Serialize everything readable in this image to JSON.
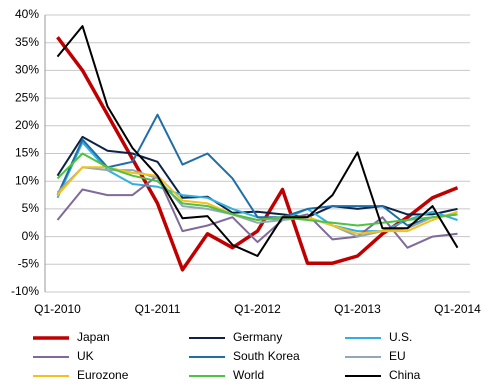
{
  "chart_data": {
    "type": "line",
    "categories": [
      "Q1-2010",
      null,
      null,
      null,
      "Q1-2011",
      null,
      null,
      null,
      "Q1-2012",
      null,
      null,
      null,
      "Q1-2013",
      null,
      null,
      null,
      "Q1-2014"
    ],
    "ylim": [
      -10,
      40
    ],
    "yticks": [
      {
        "value": -10,
        "label": "-10%"
      },
      {
        "value": -5,
        "label": "-5%"
      },
      {
        "value": 0,
        "label": "0%"
      },
      {
        "value": 5,
        "label": "5%"
      },
      {
        "value": 10,
        "label": "10%"
      },
      {
        "value": 15,
        "label": "15%"
      },
      {
        "value": 20,
        "label": "20%"
      },
      {
        "value": 25,
        "label": "25%"
      },
      {
        "value": 30,
        "label": "30%"
      },
      {
        "value": 35,
        "label": "35%"
      },
      {
        "value": 40,
        "label": "40%"
      }
    ],
    "grid": true,
    "series": [
      {
        "name": "Japan",
        "color": "#c00000",
        "values": [
          36,
          30,
          22,
          14,
          6,
          -6,
          0.5,
          -2,
          1,
          8.5,
          -4.8,
          -4.8,
          -3.5,
          0.5,
          3.5,
          7,
          8.8
        ]
      },
      {
        "name": "Germany",
        "color": "#0d2345",
        "values": [
          11,
          18,
          15.5,
          15,
          13.5,
          7,
          7.2,
          4.3,
          4.5,
          4,
          3.5,
          5.5,
          5,
          5.5,
          4,
          4,
          5
        ]
      },
      {
        "name": "U.S.",
        "color": "#31b0e0",
        "values": [
          7,
          17,
          12,
          9.5,
          9,
          7.5,
          7,
          5,
          3.5,
          3,
          5,
          2,
          1,
          1,
          3,
          4.5,
          3
        ]
      },
      {
        "name": "UK",
        "color": "#7f6a9a",
        "values": [
          3,
          8.5,
          7.5,
          7.5,
          11,
          1,
          2,
          3.5,
          -1,
          3,
          4,
          -0.5,
          0,
          3.5,
          -2,
          0,
          0.5
        ]
      },
      {
        "name": "South Korea",
        "color": "#1f6ea8",
        "values": [
          7.5,
          17.5,
          12.5,
          13.5,
          22,
          13,
          15,
          10.5,
          3.5,
          3.5,
          5,
          5.5,
          5.5,
          5.5,
          2,
          3.5,
          4
        ]
      },
      {
        "name": "EU",
        "color": "#8fa9b8",
        "values": [
          8,
          12.5,
          12,
          12,
          10.5,
          5.5,
          5,
          4,
          2.5,
          3,
          3.5,
          2,
          0,
          1,
          1.5,
          3.5,
          4
        ]
      },
      {
        "name": "Eurozone",
        "color": "#f5c116",
        "values": [
          7.5,
          12.5,
          12.5,
          11.5,
          11,
          6.5,
          6,
          4,
          3,
          3.5,
          3.5,
          2,
          0.5,
          1,
          1,
          3,
          4.5
        ]
      },
      {
        "name": "World",
        "color": "#4ec243",
        "values": [
          10.5,
          15,
          12.5,
          11,
          10,
          6,
          5.5,
          4,
          3,
          3.5,
          3,
          2.5,
          2,
          2.5,
          3,
          3.5,
          4
        ]
      },
      {
        "name": "China",
        "color": "#000000",
        "values": [
          32.5,
          38,
          23.5,
          16,
          11,
          3.3,
          3.7,
          -1.5,
          -3.5,
          3.5,
          3.5,
          7.5,
          15.2,
          1.5,
          1.5,
          5.5,
          -2
        ]
      }
    ]
  }
}
